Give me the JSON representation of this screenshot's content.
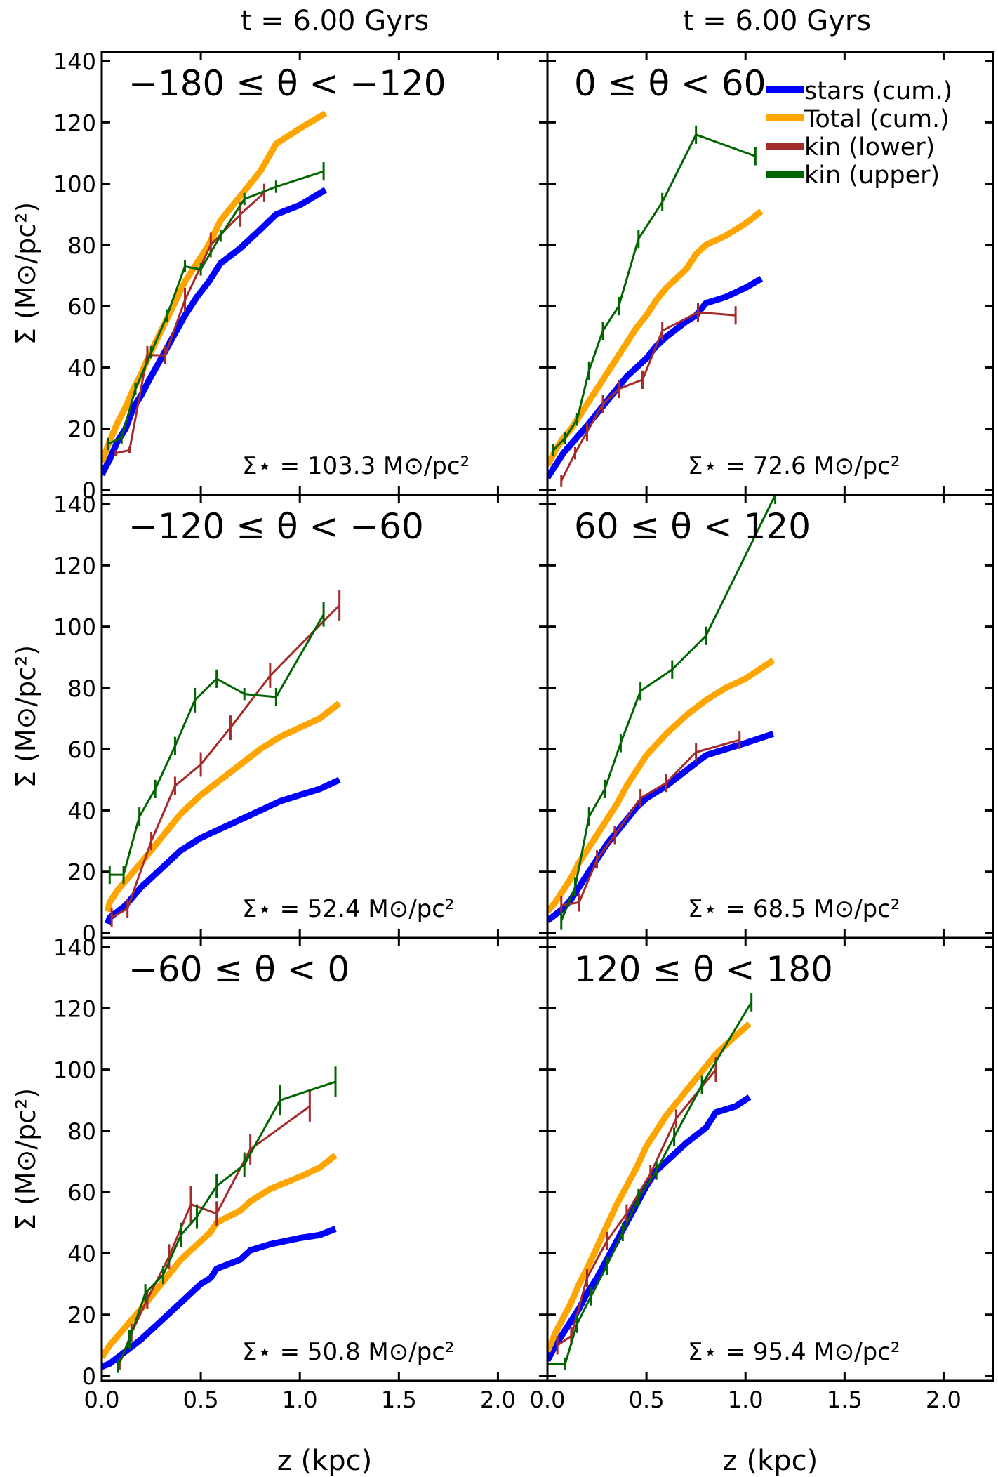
{
  "figure": {
    "col_titles": [
      "t = 6.00 Gyrs",
      "t = 6.00 Gyrs"
    ],
    "xlabel": "z (kpc)",
    "ylabel": "Σ (M⊙/pc²)",
    "x_ticks": [
      "0.0",
      "0.5",
      "1.0",
      "1.5",
      "2.0"
    ],
    "y_ticks": [
      "0",
      "20",
      "40",
      "60",
      "80",
      "100",
      "120",
      "140"
    ]
  },
  "legend": {
    "position": "top-right of panel 2",
    "entries": [
      {
        "label": "stars (cum.)",
        "color": "#0000ff"
      },
      {
        "label": "Total (cum.)",
        "color": "#ffa500"
      },
      {
        "label": "kin (lower)",
        "color": "#a52a2a"
      },
      {
        "label": "kin (upper)",
        "color": "#006400"
      }
    ]
  },
  "chart_data": [
    {
      "type": "line",
      "title": "−180 ≤ θ < −120",
      "annotation": "Σ⋆ = 103.3 M⊙/pc²",
      "xlim": [
        0,
        2.25
      ],
      "ylim": [
        0,
        143
      ],
      "series": [
        {
          "name": "stars (cum.)",
          "x": [
            0.0,
            0.04,
            0.08,
            0.12,
            0.16,
            0.2,
            0.24,
            0.3,
            0.36,
            0.42,
            0.48,
            0.54,
            0.6,
            0.7,
            0.8,
            0.88,
            1.0,
            1.13
          ],
          "y": [
            5,
            10,
            16,
            20,
            27,
            31,
            36,
            43,
            50,
            57,
            63,
            68,
            74,
            79,
            85,
            90,
            93,
            98
          ]
        },
        {
          "name": "Total (cum.)",
          "x": [
            0.0,
            0.04,
            0.08,
            0.12,
            0.16,
            0.2,
            0.24,
            0.3,
            0.36,
            0.42,
            0.48,
            0.54,
            0.6,
            0.7,
            0.8,
            0.88,
            1.0,
            1.13
          ],
          "y": [
            9,
            16,
            22,
            27,
            33,
            38,
            44,
            52,
            60,
            68,
            74,
            80,
            88,
            96,
            104,
            113,
            118,
            123
          ]
        },
        {
          "name": "kin (lower)",
          "x": [
            0.07,
            0.14,
            0.23,
            0.32,
            0.42,
            0.55,
            0.7,
            0.82
          ],
          "y": [
            12,
            13,
            44,
            44,
            62,
            80,
            90,
            97
          ],
          "err": [
            1,
            1,
            3,
            3,
            4,
            4,
            4,
            3
          ]
        },
        {
          "name": "kin (upper)",
          "x": [
            0.03,
            0.1,
            0.17,
            0.25,
            0.33,
            0.42,
            0.5,
            0.6,
            0.72,
            0.88,
            1.12
          ],
          "y": [
            15,
            17,
            33,
            45,
            57,
            73,
            72,
            83,
            95,
            99,
            104
          ],
          "err": [
            2,
            2,
            2,
            2,
            2,
            2,
            2,
            2,
            2,
            2,
            3
          ]
        }
      ]
    },
    {
      "type": "line",
      "title": "0 ≤ θ < 60",
      "annotation": "Σ⋆ = 72.6 M⊙/pc²",
      "xlim": [
        0,
        2.25
      ],
      "ylim": [
        0,
        143
      ],
      "series": [
        {
          "name": "stars (cum.)",
          "x": [
            0.0,
            0.04,
            0.08,
            0.12,
            0.16,
            0.2,
            0.25,
            0.3,
            0.35,
            0.4,
            0.45,
            0.5,
            0.55,
            0.6,
            0.7,
            0.75,
            0.8,
            0.9,
            1.0,
            1.08
          ],
          "y": [
            4,
            8,
            12,
            15,
            18,
            21,
            25,
            29,
            33,
            37,
            40,
            43,
            47,
            50,
            55,
            57,
            61,
            63,
            66,
            69
          ]
        },
        {
          "name": "Total (cum.)",
          "x": [
            0.0,
            0.04,
            0.08,
            0.12,
            0.16,
            0.2,
            0.25,
            0.3,
            0.35,
            0.4,
            0.45,
            0.5,
            0.55,
            0.6,
            0.7,
            0.75,
            0.8,
            0.9,
            1.0,
            1.08
          ],
          "y": [
            8,
            13,
            17,
            20,
            24,
            28,
            33,
            38,
            43,
            48,
            53,
            57,
            62,
            66,
            72,
            77,
            80,
            83,
            87,
            91
          ]
        },
        {
          "name": "kin (lower)",
          "x": [
            0.07,
            0.14,
            0.2,
            0.28,
            0.36,
            0.48,
            0.58,
            0.76,
            0.95
          ],
          "y": [
            3,
            12,
            19,
            28,
            33,
            36,
            52,
            58,
            57
          ],
          "err": [
            2,
            2,
            3,
            3,
            3,
            3,
            3,
            3,
            3
          ]
        },
        {
          "name": "kin (upper)",
          "x": [
            0.03,
            0.09,
            0.15,
            0.21,
            0.28,
            0.36,
            0.46,
            0.58,
            0.75,
            1.05
          ],
          "y": [
            13,
            17,
            23,
            39,
            52,
            60,
            82,
            94,
            116,
            109
          ],
          "err": [
            2,
            2,
            2,
            3,
            3,
            3,
            3,
            3,
            3,
            3
          ]
        }
      ]
    },
    {
      "type": "line",
      "title": "−120 ≤ θ < −60",
      "annotation": "Σ⋆ = 52.4 M⊙/pc²",
      "xlim": [
        0,
        2.25
      ],
      "ylim": [
        0,
        143
      ],
      "series": [
        {
          "name": "stars (cum.)",
          "x": [
            0.03,
            0.04,
            0.08,
            0.12,
            0.16,
            0.2,
            0.25,
            0.3,
            0.35,
            0.4,
            0.45,
            0.5,
            0.6,
            0.7,
            0.8,
            0.9,
            1.0,
            1.1,
            1.2
          ],
          "y": [
            3,
            5,
            7,
            9,
            12,
            15,
            18,
            21,
            24,
            27,
            29,
            31,
            34,
            37,
            40,
            43,
            45,
            47,
            50
          ]
        },
        {
          "name": "Total (cum.)",
          "x": [
            0.03,
            0.04,
            0.08,
            0.12,
            0.16,
            0.2,
            0.25,
            0.3,
            0.35,
            0.4,
            0.45,
            0.5,
            0.6,
            0.7,
            0.8,
            0.9,
            1.0,
            1.1,
            1.2
          ],
          "y": [
            7,
            10,
            14,
            17,
            20,
            23,
            27,
            31,
            35,
            39,
            42,
            45,
            50,
            55,
            60,
            64,
            67,
            70,
            75
          ]
        },
        {
          "name": "kin (lower)",
          "x": [
            0.05,
            0.13,
            0.25,
            0.37,
            0.5,
            0.65,
            0.85,
            1.2
          ],
          "y": [
            5,
            8,
            30,
            48,
            55,
            67,
            84,
            107
          ],
          "err": [
            3,
            3,
            3,
            3,
            4,
            4,
            4,
            5
          ]
        },
        {
          "name": "kin (upper)",
          "x": [
            0.04,
            0.11,
            0.19,
            0.27,
            0.37,
            0.47,
            0.58,
            0.72,
            0.88,
            1.12
          ],
          "y": [
            19,
            19,
            38,
            47,
            61,
            76,
            83,
            78,
            77,
            104
          ],
          "err": [
            3,
            3,
            3,
            3,
            3,
            4,
            3,
            2,
            3,
            4
          ]
        }
      ]
    },
    {
      "type": "line",
      "title": "60 ≤ θ < 120",
      "annotation": "Σ⋆ = 68.5 M⊙/pc²",
      "xlim": [
        0,
        2.25
      ],
      "ylim": [
        0,
        143
      ],
      "series": [
        {
          "name": "stars (cum.)",
          "x": [
            0.0,
            0.04,
            0.08,
            0.12,
            0.16,
            0.2,
            0.25,
            0.3,
            0.35,
            0.4,
            0.45,
            0.5,
            0.6,
            0.7,
            0.8,
            0.9,
            1.0,
            1.14
          ],
          "y": [
            4,
            6,
            8,
            11,
            15,
            19,
            24,
            29,
            33,
            37,
            41,
            44,
            48,
            53,
            58,
            60,
            62,
            65
          ]
        },
        {
          "name": "Total (cum.)",
          "x": [
            0.0,
            0.04,
            0.08,
            0.12,
            0.16,
            0.2,
            0.25,
            0.3,
            0.35,
            0.4,
            0.45,
            0.5,
            0.6,
            0.7,
            0.8,
            0.9,
            1.0,
            1.14
          ],
          "y": [
            7,
            10,
            14,
            18,
            23,
            27,
            32,
            37,
            42,
            48,
            53,
            58,
            65,
            71,
            76,
            80,
            83,
            89
          ]
        },
        {
          "name": "kin (lower)",
          "x": [
            0.07,
            0.16,
            0.25,
            0.34,
            0.47,
            0.6,
            0.75,
            0.97
          ],
          "y": [
            9,
            10,
            24,
            32,
            44,
            49,
            59,
            63
          ],
          "err": [
            3,
            3,
            3,
            3,
            3,
            3,
            3,
            3
          ]
        },
        {
          "name": "kin (upper)",
          "x": [
            0.07,
            0.14,
            0.21,
            0.29,
            0.37,
            0.47,
            0.63,
            0.8,
            1.15
          ],
          "y": [
            4,
            15,
            38,
            47,
            62,
            79,
            86,
            97,
            143
          ],
          "err": [
            3,
            3,
            3,
            3,
            3,
            3,
            3,
            3,
            3
          ]
        }
      ]
    },
    {
      "type": "line",
      "title": "−60 ≤ θ < 0",
      "annotation": "Σ⋆ = 50.8 M⊙/pc²",
      "xlim": [
        0,
        2.25
      ],
      "ylim": [
        0,
        143
      ],
      "series": [
        {
          "name": "stars (cum.)",
          "x": [
            0.0,
            0.04,
            0.08,
            0.12,
            0.16,
            0.2,
            0.25,
            0.3,
            0.35,
            0.4,
            0.45,
            0.5,
            0.55,
            0.58,
            0.7,
            0.75,
            0.85,
            1.0,
            1.1,
            1.18
          ],
          "y": [
            3,
            4,
            6,
            8,
            10,
            12,
            15,
            18,
            21,
            24,
            27,
            30,
            32,
            35,
            38,
            41,
            43,
            45,
            46,
            48
          ]
        },
        {
          "name": "Total (cum.)",
          "x": [
            0.0,
            0.04,
            0.08,
            0.12,
            0.16,
            0.2,
            0.25,
            0.3,
            0.35,
            0.4,
            0.45,
            0.5,
            0.55,
            0.58,
            0.7,
            0.75,
            0.85,
            1.0,
            1.1,
            1.18
          ],
          "y": [
            6,
            10,
            13,
            16,
            19,
            22,
            26,
            30,
            34,
            38,
            41,
            44,
            47,
            50,
            54,
            57,
            61,
            65,
            68,
            72
          ]
        },
        {
          "name": "kin (lower)",
          "x": [
            0.09,
            0.15,
            0.23,
            0.34,
            0.45,
            0.58,
            0.75,
            1.05
          ],
          "y": [
            4,
            14,
            25,
            39,
            56,
            53,
            74,
            88
          ],
          "err": [
            2,
            3,
            3,
            4,
            6,
            4,
            5,
            5
          ]
        },
        {
          "name": "kin (upper)",
          "x": [
            0.08,
            0.14,
            0.22,
            0.31,
            0.4,
            0.48,
            0.58,
            0.72,
            0.9,
            1.18
          ],
          "y": [
            3,
            12,
            27,
            33,
            46,
            52,
            62,
            69,
            90,
            96
          ],
          "err": [
            2,
            3,
            3,
            3,
            4,
            4,
            4,
            4,
            5,
            5
          ]
        }
      ]
    },
    {
      "type": "line",
      "title": "120 ≤ θ < 180",
      "annotation": "Σ⋆ = 95.4 M⊙/pc²",
      "xlim": [
        0,
        2.25
      ],
      "ylim": [
        0,
        143
      ],
      "series": [
        {
          "name": "stars (cum.)",
          "x": [
            0.0,
            0.04,
            0.08,
            0.12,
            0.16,
            0.2,
            0.25,
            0.3,
            0.35,
            0.4,
            0.45,
            0.5,
            0.55,
            0.6,
            0.7,
            0.8,
            0.85,
            0.95,
            1.02
          ],
          "y": [
            5,
            10,
            14,
            18,
            22,
            27,
            32,
            38,
            44,
            50,
            56,
            62,
            67,
            70,
            76,
            81,
            86,
            88,
            91
          ]
        },
        {
          "name": "Total (cum.)",
          "x": [
            0.0,
            0.04,
            0.08,
            0.12,
            0.16,
            0.2,
            0.25,
            0.3,
            0.35,
            0.4,
            0.45,
            0.5,
            0.55,
            0.6,
            0.7,
            0.8,
            0.85,
            0.95,
            1.02
          ],
          "y": [
            8,
            14,
            19,
            24,
            30,
            35,
            42,
            49,
            56,
            62,
            68,
            75,
            80,
            85,
            93,
            101,
            105,
            111,
            115
          ]
        },
        {
          "name": "kin (lower)",
          "x": [
            0.05,
            0.12,
            0.2,
            0.3,
            0.4,
            0.52,
            0.65,
            0.85
          ],
          "y": [
            10,
            13,
            32,
            44,
            53,
            66,
            84,
            100
          ],
          "err": [
            3,
            3,
            3,
            3,
            3,
            3,
            3,
            4
          ]
        },
        {
          "name": "kin (upper)",
          "x": [
            0.0,
            0.09,
            0.15,
            0.22,
            0.3,
            0.38,
            0.46,
            0.55,
            0.64,
            0.78,
            1.03
          ],
          "y": [
            4,
            4,
            17,
            26,
            36,
            47,
            58,
            67,
            78,
            95,
            122
          ],
          "err": [
            2,
            2,
            3,
            3,
            3,
            3,
            3,
            3,
            3,
            3,
            3
          ]
        }
      ]
    }
  ]
}
